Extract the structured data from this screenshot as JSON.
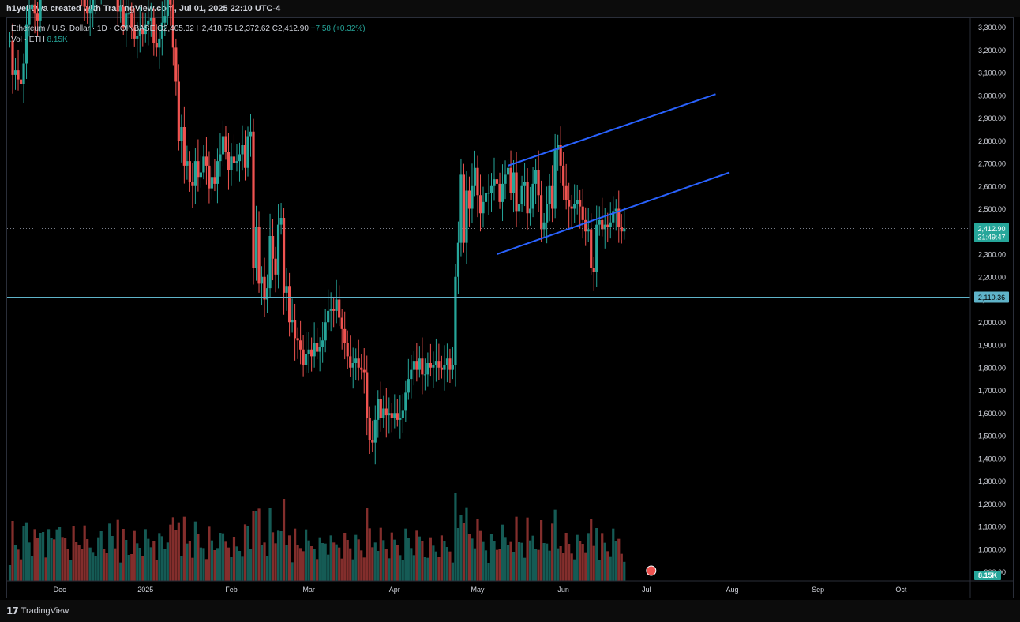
{
  "header": {
    "credit": "h1yellowa created with TradingView.com, Jul 01, 2025 22:10 UTC-4"
  },
  "legend": {
    "symbol": "Ethereum / U.S. Dollar · 1D · COINBASE",
    "ohlc_partial": "O2,405.32 H2,418.75 L2,372.62 C2,412.90",
    "change": "+7.58 (+0.32%)",
    "vol_label": "Vol · ETH",
    "vol_value": "8.15K"
  },
  "footer": {
    "brand": "TradingView"
  },
  "colors": {
    "up": "#26a69a",
    "down": "#ef5350",
    "channel": "#2962ff",
    "support": "#5fb3c9",
    "background": "#000000"
  },
  "chart_data": {
    "type": "candlestick",
    "symbol": "ETHUSD",
    "exchange": "COINBASE",
    "interval": "1D",
    "y_axis": {
      "ticks": [
        900,
        1000,
        1100,
        1200,
        1300,
        1400,
        1500,
        1600,
        1700,
        1800,
        1900,
        2000,
        2100,
        2200,
        2300,
        2400,
        2500,
        2600,
        2700,
        2800,
        2900,
        3000,
        3100,
        3200,
        3300
      ],
      "tick_labels": [
        "900.00",
        "1,000.00",
        "1,100.00",
        "1,200.00",
        "1,300.00",
        "1,400.00",
        "1,500.00",
        "1,600.00",
        "1,700.00",
        "1,800.00",
        "1,900.00",
        "2,000.00",
        "2,100.00",
        "2,200.00",
        "2,300.00",
        "2,400.00",
        "2,500.00",
        "2,600.00",
        "2,700.00",
        "2,800.00",
        "2,900.00",
        "3,000.00",
        "3,100.00",
        "3,200.00",
        "3,300.00"
      ],
      "range": [
        860,
        3340
      ]
    },
    "x_axis": {
      "labels": [
        "Dec",
        "2025",
        "Feb",
        "Mar",
        "Apr",
        "May",
        "Jun",
        "Jul",
        "Aug",
        "Sep",
        "Oct"
      ],
      "label_dates": [
        "2024-12-01",
        "2025-01-01",
        "2025-02-01",
        "2025-03-01",
        "2025-04-01",
        "2025-05-01",
        "2025-06-01",
        "2025-07-01",
        "2025-08-01",
        "2025-09-01",
        "2025-10-01"
      ],
      "range": [
        "2024-11-12",
        "2025-10-26"
      ]
    },
    "last_price": {
      "value": 2412.9,
      "label": "2,412.90",
      "countdown": "21:49:47"
    },
    "horizontal_line": {
      "value": 2110.36,
      "label": "2,110.36"
    },
    "volume_badge": "8.15K",
    "channel_lines": [
      {
        "start": {
          "date": "2025-05-08",
          "price": 2300
        },
        "end": {
          "date": "2025-07-31",
          "price": 2660
        }
      },
      {
        "start": {
          "date": "2025-05-12",
          "price": 2690
        },
        "end": {
          "date": "2025-07-26",
          "price": 3005
        }
      }
    ],
    "candles": {
      "start_date": "2024-11-13",
      "close": [
        3240,
        3090,
        3110,
        3070,
        3050,
        3140,
        3310,
        3380,
        3400,
        3360,
        3330,
        3450,
        3630,
        3590,
        3660,
        3720,
        3620,
        3850,
        3910,
        3870,
        3780,
        3720,
        3750,
        3650,
        3620,
        3560,
        3470,
        3390,
        3360,
        3380,
        3420,
        3480,
        3500,
        3620,
        3580,
        3520,
        3620,
        3680,
        3660,
        3370,
        3390,
        3300,
        3360,
        3360,
        3300,
        3250,
        3260,
        3290,
        3270,
        3310,
        3330,
        3340,
        3230,
        3210,
        3250,
        3320,
        3350,
        3480,
        3400,
        3210,
        3060,
        2800,
        2860,
        2690,
        2710,
        2620,
        2600,
        2710,
        2640,
        2660,
        2730,
        2690,
        2590,
        2640,
        2610,
        2710,
        2740,
        2820,
        2750,
        2670,
        2730,
        2700,
        2710,
        2740,
        2780,
        2680,
        2820,
        2840,
        2240,
        2420,
        2170,
        2200,
        2100,
        2150,
        2380,
        2280,
        2210,
        2430,
        2460,
        2130,
        2160,
        2000,
        2010,
        1930,
        1920,
        1880,
        1810,
        1860,
        1880,
        1850,
        1910,
        1870,
        1890,
        1920,
        2000,
        2050,
        2060,
        2050,
        2100,
        2020,
        1970,
        1910,
        1850,
        1800,
        1820,
        1840,
        1800,
        1790,
        1780,
        1580,
        1480,
        1470,
        1570,
        1660,
        1580,
        1620,
        1590,
        1600,
        1580,
        1600,
        1570,
        1580,
        1610,
        1690,
        1750,
        1790,
        1830,
        1790,
        1840,
        1770,
        1770,
        1820,
        1800,
        1810,
        1830,
        1800,
        1790,
        1810,
        1840,
        1790,
        1810,
        2200,
        2350,
        2650,
        2350,
        2580,
        2500,
        2600,
        2680,
        2560,
        2480,
        2530,
        2570,
        2570,
        2600,
        2630,
        2610,
        2530,
        2610,
        2650,
        2680,
        2570,
        2660,
        2490,
        2520,
        2600,
        2620,
        2480,
        2500,
        2610,
        2670,
        2560,
        2410,
        2440,
        2520,
        2600,
        2500,
        2760,
        2780,
        2690,
        2600,
        2540,
        2510,
        2500,
        2520,
        2540,
        2510,
        2450,
        2400,
        2410,
        2240,
        2220,
        2430,
        2450,
        2410,
        2430,
        2420,
        2440,
        2490,
        2500,
        2420,
        2400,
        2413
      ],
      "pattern": "daily closes sampled from chart, ~231 sessions to 2025-07-01"
    }
  }
}
